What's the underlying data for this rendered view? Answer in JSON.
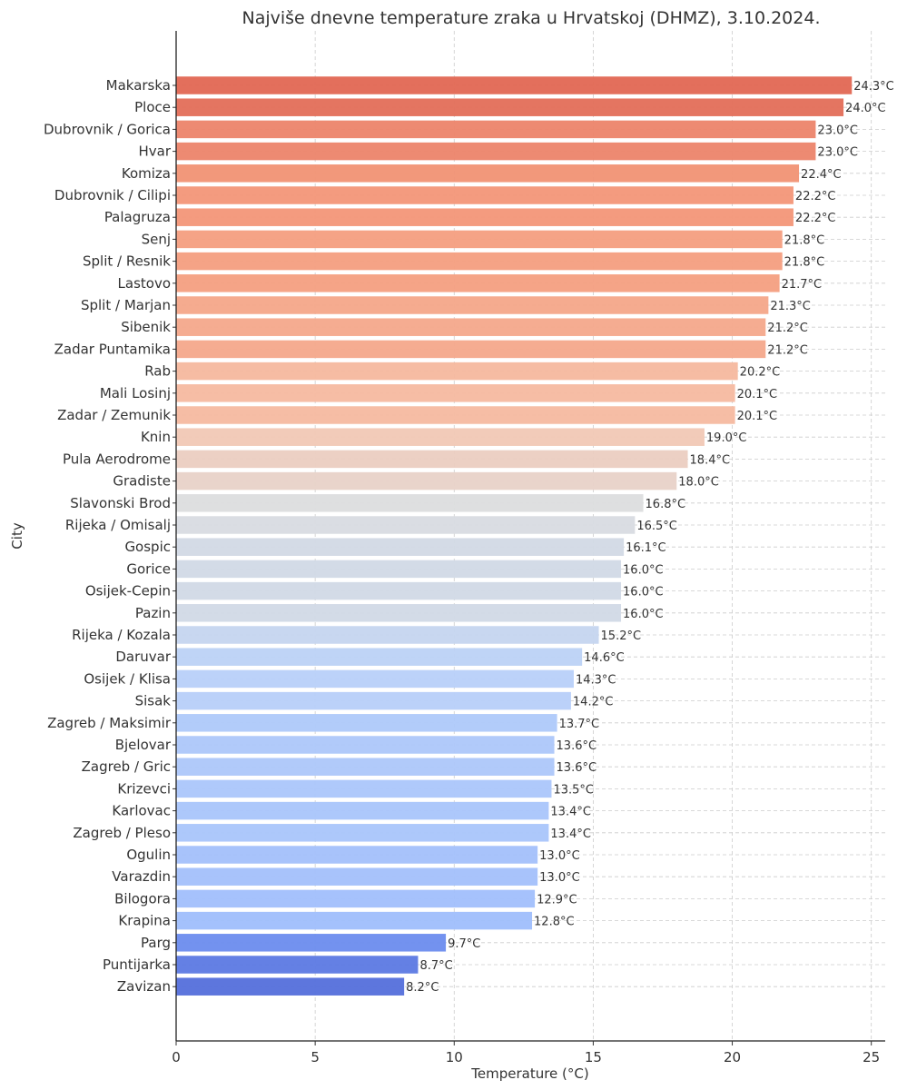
{
  "chart_data": {
    "type": "bar",
    "orientation": "horizontal",
    "title": "Najviše dnevne temperature zraka u Hrvatskoj (DHMZ), 3.10.2024.",
    "xlabel": "Temperature (°C)",
    "ylabel": "City",
    "xlim": [
      0,
      25.5
    ],
    "xticks": [
      0,
      5,
      10,
      15,
      20,
      25
    ],
    "xtick_labels": [
      "0",
      "5",
      "10",
      "15",
      "20",
      "25"
    ],
    "grid": true,
    "colormap": "coolwarm",
    "value_suffix": "°C",
    "categories": [
      "Makarska",
      "Ploce",
      "Dubrovnik / Gorica",
      "Hvar",
      "Komiza",
      "Dubrovnik / Cilipi",
      "Palagruza",
      "Senj",
      "Split / Resnik",
      "Lastovo",
      "Split / Marjan",
      "Sibenik",
      "Zadar Puntamika",
      "Rab",
      "Mali Losinj",
      "Zadar / Zemunik",
      "Knin",
      "Pula Aerodrome",
      "Gradiste",
      "Slavonski Brod",
      "Rijeka / Omisalj",
      "Gospic",
      "Gorice",
      "Osijek-Cepin",
      "Pazin",
      "Rijeka / Kozala",
      "Daruvar",
      "Osijek / Klisa",
      "Sisak",
      "Zagreb / Maksimir",
      "Bjelovar",
      "Zagreb / Gric",
      "Krizevci",
      "Karlovac",
      "Zagreb / Pleso",
      "Ogulin",
      "Varazdin",
      "Bilogora",
      "Krapina",
      "Parg",
      "Puntijarka",
      "Zavizan"
    ],
    "values": [
      24.3,
      24.0,
      23.0,
      23.0,
      22.4,
      22.2,
      22.2,
      21.8,
      21.8,
      21.7,
      21.3,
      21.2,
      21.2,
      20.2,
      20.1,
      20.1,
      19.0,
      18.4,
      18.0,
      16.8,
      16.5,
      16.1,
      16.0,
      16.0,
      16.0,
      15.2,
      14.6,
      14.3,
      14.2,
      13.7,
      13.6,
      13.6,
      13.5,
      13.4,
      13.4,
      13.0,
      13.0,
      12.9,
      12.8,
      9.7,
      8.7,
      8.2
    ],
    "value_labels": [
      "24.3°C",
      "24.0°C",
      "23.0°C",
      "23.0°C",
      "22.4°C",
      "22.2°C",
      "22.2°C",
      "21.8°C",
      "21.8°C",
      "21.7°C",
      "21.3°C",
      "21.2°C",
      "21.2°C",
      "20.2°C",
      "20.1°C",
      "20.1°C",
      "19.0°C",
      "18.4°C",
      "18.0°C",
      "16.8°C",
      "16.5°C",
      "16.1°C",
      "16.0°C",
      "16.0°C",
      "16.0°C",
      "15.2°C",
      "14.6°C",
      "14.3°C",
      "14.2°C",
      "13.7°C",
      "13.6°C",
      "13.6°C",
      "13.5°C",
      "13.4°C",
      "13.4°C",
      "13.0°C",
      "13.0°C",
      "12.9°C",
      "12.8°C",
      "9.7°C",
      "8.7°C",
      "8.2°C"
    ]
  }
}
